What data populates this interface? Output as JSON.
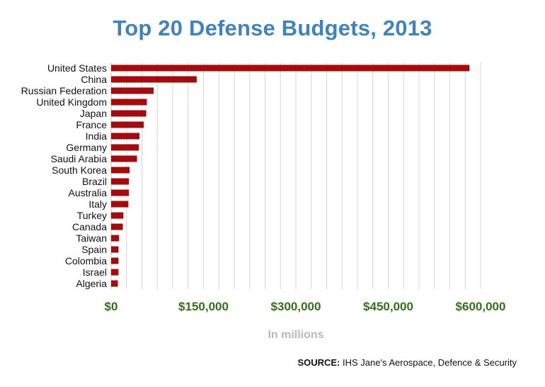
{
  "chart_data": {
    "type": "bar",
    "orientation": "horizontal",
    "title": "Top 20 Defense Budgets, 2013",
    "xlabel": "In millions",
    "ylabel": "",
    "categories": [
      "United States",
      "China",
      "Russian Federation",
      "United Kingdom",
      "Japan",
      "France",
      "India",
      "Germany",
      "Saudi Arabia",
      "South Korea",
      "Brazil",
      "Australia",
      "Italy",
      "Turkey",
      "Canada",
      "Taiwan",
      "Spain",
      "Colombia",
      "Israel",
      "Algeria"
    ],
    "values": [
      582000,
      139000,
      69000,
      58000,
      57000,
      53000,
      46000,
      45000,
      42000,
      30000,
      29000,
      29000,
      28000,
      20000,
      19000,
      13000,
      12000,
      12000,
      12000,
      11000
    ],
    "xlim": [
      0,
      600000
    ],
    "ticks": [
      0,
      150000,
      300000,
      450000,
      600000
    ],
    "tick_labels": [
      "$0",
      "$150,000",
      "$300,000",
      "$450,000",
      "$600,000"
    ],
    "grid": true,
    "bar_color": "#a10d0d",
    "grid_color": "#d6d6d6",
    "tick_label_color": "#356e1d",
    "title_color": "#3f82bd"
  },
  "source": {
    "prefix": "SOURCE:",
    "text": " IHS Jane's Aerospace, Defence & Security"
  }
}
